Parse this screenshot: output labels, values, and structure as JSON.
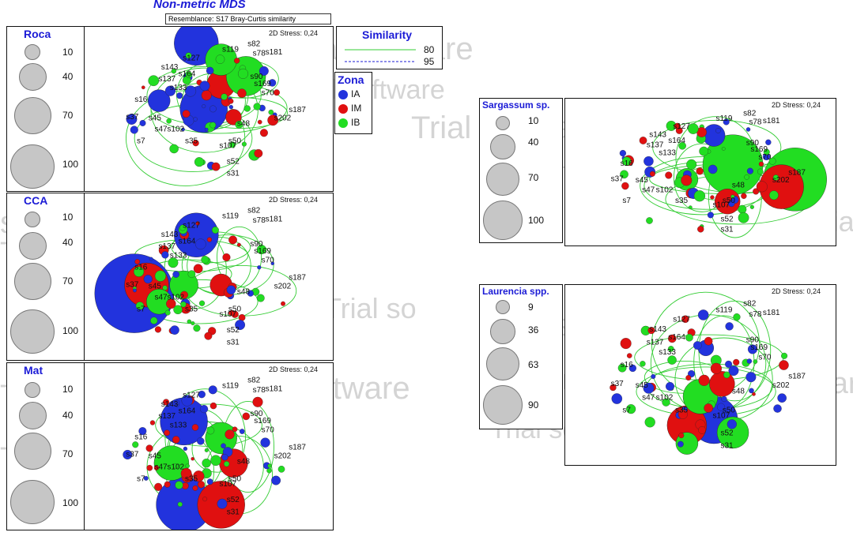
{
  "header": {
    "title": "Non-metric MDS",
    "resemblance": "Resemblance: S17 Bray-Curtis similarity"
  },
  "stress_label": "2D Stress: 0,24",
  "watermark_text": "Trial software",
  "watermark_fragments": [
    "Trial software",
    "Trial software",
    "Trial software",
    "Trial software",
    "Trial",
    "Trial software",
    "software",
    "Trial software",
    "Trial software",
    "Trial so",
    "ial software",
    "Trial",
    "Trial software",
    "software"
  ],
  "similarity_legend": {
    "title": "Similarity",
    "items": [
      {
        "label": "80",
        "color": "#33cc33",
        "style": "solid"
      },
      {
        "label": "95",
        "color": "#1b1bd6",
        "style": "dashed"
      }
    ]
  },
  "zona_legend": {
    "title": "Zona",
    "items": [
      {
        "label": "IA",
        "color": "#2233dd"
      },
      {
        "label": "IM",
        "color": "#e01010"
      },
      {
        "label": "IB",
        "color": "#22dd22"
      }
    ]
  },
  "panels": [
    {
      "id": "roca",
      "variable": "Roca",
      "sizes": [
        "10",
        "40",
        "70",
        "100"
      ]
    },
    {
      "id": "cca",
      "variable": "CCA",
      "sizes": [
        "10",
        "40",
        "70",
        "100"
      ]
    },
    {
      "id": "mat",
      "variable": "Mat",
      "sizes": [
        "10",
        "40",
        "70",
        "100"
      ]
    },
    {
      "id": "sargassum",
      "variable": "Sargassum sp.",
      "sizes": [
        "10",
        "40",
        "70",
        "100"
      ]
    },
    {
      "id": "laurencia",
      "variable": "Laurencia spp.",
      "sizes": [
        "9",
        "36",
        "63",
        "90"
      ]
    }
  ],
  "chart_data": {
    "type": "scatter",
    "title": "Non-metric MDS",
    "subtitle": "Resemblance: S17 Bray-Curtis similarity",
    "stress": 0.24,
    "series_colors": {
      "IA": "#2233dd",
      "IM": "#e01010",
      "IB": "#22dd22"
    },
    "contour_levels": [
      80,
      95
    ],
    "legend_position": "right",
    "grid": false,
    "sample_labels": [
      {
        "label": "s82",
        "x": 0.52,
        "y": 0.96
      },
      {
        "label": "s119",
        "x": 0.25,
        "y": 0.88
      },
      {
        "label": "s181",
        "x": 0.75,
        "y": 0.84
      },
      {
        "label": "s78",
        "x": 0.58,
        "y": 0.82
      },
      {
        "label": "s127",
        "x": -0.2,
        "y": 0.75
      },
      {
        "label": "s143",
        "x": -0.45,
        "y": 0.62
      },
      {
        "label": "s164",
        "x": -0.25,
        "y": 0.52
      },
      {
        "label": "s137",
        "x": -0.48,
        "y": 0.45
      },
      {
        "label": "s133",
        "x": -0.35,
        "y": 0.32
      },
      {
        "label": "s16",
        "x": -0.78,
        "y": 0.15
      },
      {
        "label": "s90",
        "x": 0.55,
        "y": 0.48
      },
      {
        "label": "s169",
        "x": 0.62,
        "y": 0.38
      },
      {
        "label": "s70",
        "x": 0.68,
        "y": 0.25
      },
      {
        "label": "s187",
        "x": 1.02,
        "y": 0.0
      },
      {
        "label": "s202",
        "x": 0.85,
        "y": -0.12
      },
      {
        "label": "s37",
        "x": -0.88,
        "y": -0.1
      },
      {
        "label": "s45",
        "x": -0.62,
        "y": -0.12
      },
      {
        "label": "s47",
        "x": -0.55,
        "y": -0.28
      },
      {
        "label": "s102",
        "x": -0.38,
        "y": -0.28
      },
      {
        "label": "s7",
        "x": -0.78,
        "y": -0.45
      },
      {
        "label": "s35",
        "x": -0.2,
        "y": -0.45
      },
      {
        "label": "s48",
        "x": 0.4,
        "y": -0.2
      },
      {
        "label": "s50",
        "x": 0.3,
        "y": -0.45
      },
      {
        "label": "s107",
        "x": 0.22,
        "y": -0.52
      },
      {
        "label": "s52",
        "x": 0.28,
        "y": -0.75
      },
      {
        "label": "s31",
        "x": 0.28,
        "y": -0.92
      }
    ]
  }
}
